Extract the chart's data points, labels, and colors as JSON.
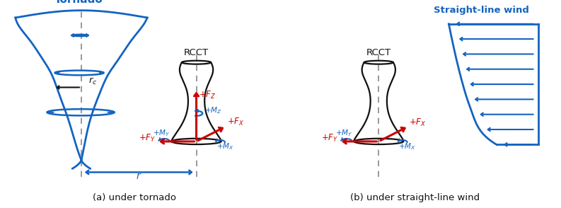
{
  "bg_color": "#ffffff",
  "blue_color": "#1464C0",
  "red_color": "#CC0000",
  "black_color": "#111111",
  "title_a": "(a) under tornado",
  "title_b": "(b) under straight-line wind",
  "tornado_label": "Tornado",
  "wind_label": "Straight-line wind",
  "rcct_label": "RCCT",
  "rc_label": "$r_c$",
  "r_label": "$r$",
  "fz_label": "$+F_Z$",
  "mz_label": "$+M_Z$",
  "fx_label": "$+F_X$",
  "mx_label": "$+M_X$",
  "fy_label": "$+F_Y$",
  "my_label": "$+M_Y$"
}
